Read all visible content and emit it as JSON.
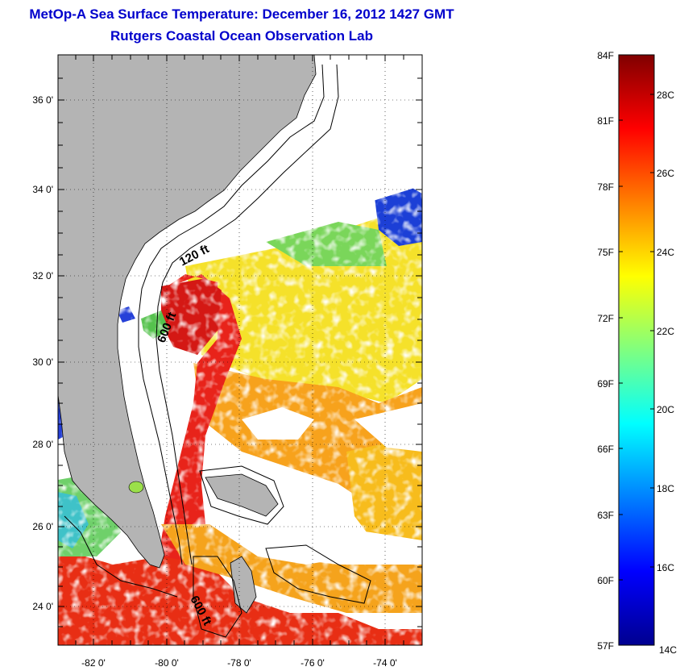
{
  "title": "MetOp-A Sea Surface Temperature:  December 16, 2012 1427 GMT",
  "subtitle": "Rutgers Coastal Ocean Observation Lab",
  "map": {
    "lon_range": [
      -83,
      -73
    ],
    "lat_range": [
      23,
      37
    ],
    "lon_ticks": [
      {
        "value": -82,
        "label": "-82 0'"
      },
      {
        "value": -80,
        "label": "-80 0'"
      },
      {
        "value": -78,
        "label": "-78 0'"
      },
      {
        "value": -76,
        "label": "-76 0'"
      },
      {
        "value": -74,
        "label": "-74 0'"
      }
    ],
    "lat_ticks": [
      {
        "value": 36,
        "label": "36 0'"
      },
      {
        "value": 34,
        "label": "34 0'"
      },
      {
        "value": 32,
        "label": "32 0'"
      },
      {
        "value": 30,
        "label": "30 0'"
      },
      {
        "value": 28,
        "label": "28 0'"
      },
      {
        "value": 26,
        "label": "26 0'"
      },
      {
        "value": 24,
        "label": "24 0'"
      }
    ],
    "grid": "dotted",
    "depth_labels": [
      "120 ft",
      "600 ft",
      "600 ft"
    ],
    "colors": {
      "land": "#b4b4b4",
      "cloud": "#ffffff",
      "contour": "#000000"
    }
  },
  "colorbar": {
    "fahrenheit_labels": [
      "84F",
      "81F",
      "78F",
      "75F",
      "72F",
      "69F",
      "66F",
      "63F",
      "60F",
      "57F"
    ],
    "celsius_labels": [
      "28C",
      "26C",
      "24C",
      "22C",
      "20C",
      "18C",
      "16C",
      "14C"
    ],
    "range_f": [
      57,
      84
    ],
    "range_c": [
      14,
      29
    ],
    "colormap": "jet"
  }
}
